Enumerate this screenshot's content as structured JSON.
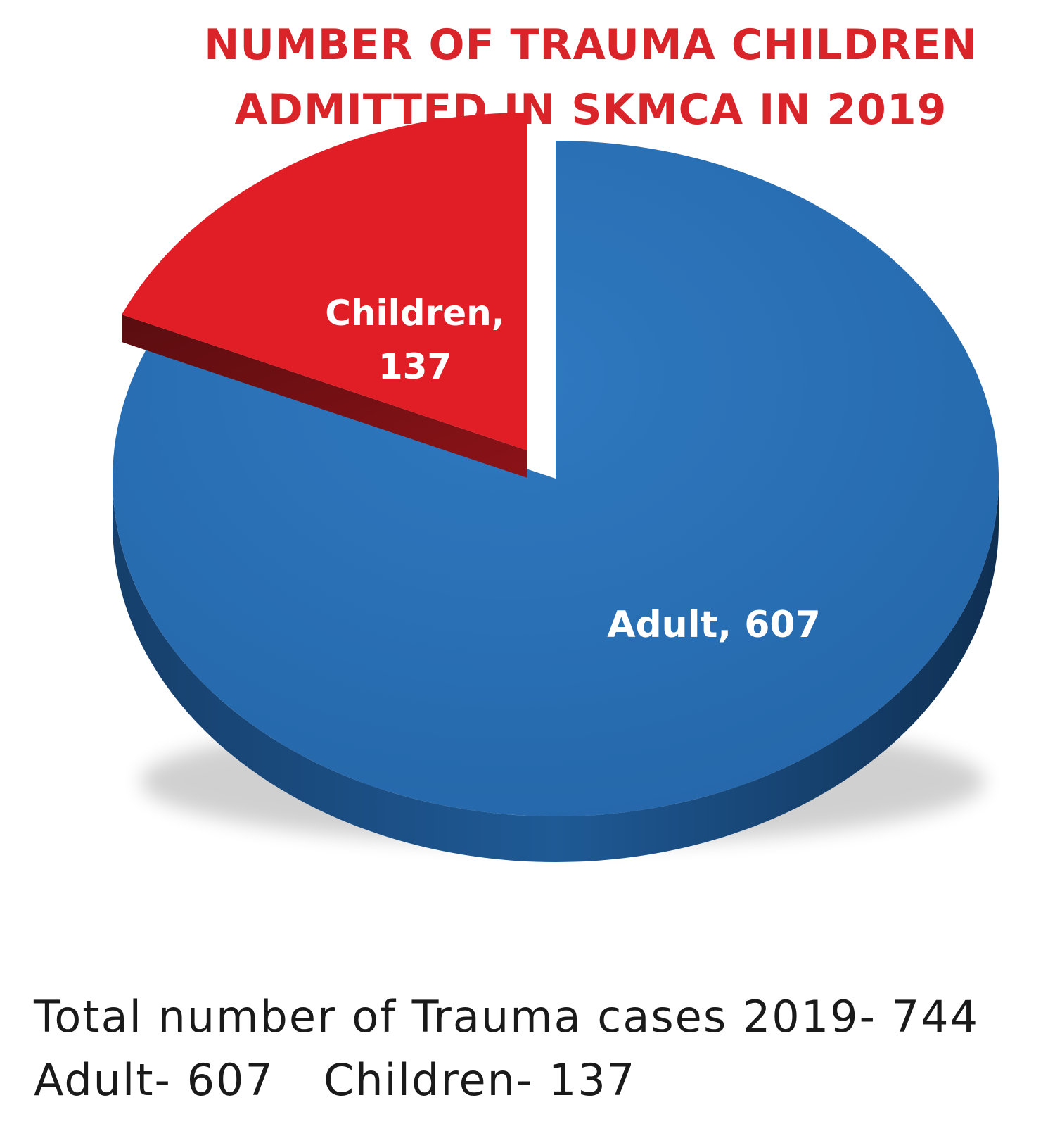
{
  "chart_data": {
    "type": "pie",
    "title_lines": [
      "NUMBER OF TRAUMA CHILDREN",
      "ADMITTED IN SKMCA IN 2019"
    ],
    "slices": [
      {
        "name": "Adult",
        "value": 607,
        "label": "Adult, 607",
        "color": "#2a6fb5"
      },
      {
        "name": "Children",
        "value": 137,
        "label_lines": [
          "Children,",
          "137"
        ],
        "color": "#e11d25",
        "exploded": true
      }
    ],
    "style": "3d"
  },
  "summary": {
    "line1": "Total number of  Trauma cases 2019- 744",
    "adult": "Adult-  607",
    "children": "Children- 137"
  }
}
